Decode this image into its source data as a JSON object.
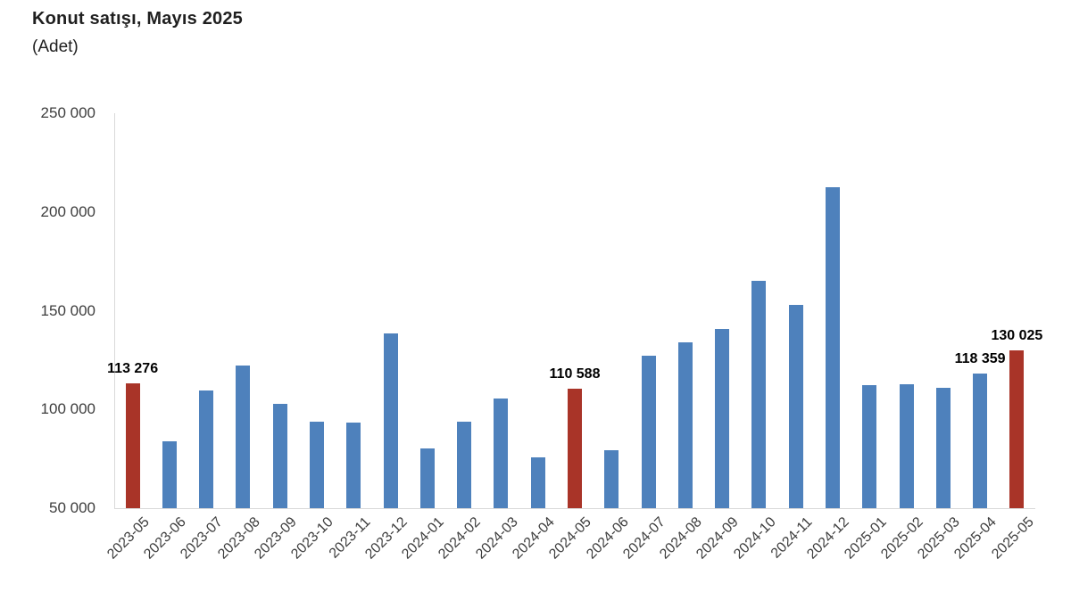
{
  "header": {
    "title": "Konut satışı, Mayıs 2025",
    "subtitle": "(Adet)"
  },
  "chart_data": {
    "type": "bar",
    "title": "Konut satışı, Mayıs 2025",
    "unit_label": "(Adet)",
    "categories": [
      "2023-05",
      "2023-06",
      "2023-07",
      "2023-08",
      "2023-09",
      "2023-10",
      "2023-11",
      "2023-12",
      "2024-01",
      "2024-02",
      "2024-03",
      "2024-04",
      "2024-05",
      "2024-06",
      "2024-07",
      "2024-08",
      "2024-09",
      "2024-10",
      "2024-11",
      "2024-12",
      "2025-01",
      "2025-02",
      "2025-03",
      "2025-04",
      "2025-05"
    ],
    "values": [
      113276,
      83636,
      109548,
      122091,
      102656,
      93761,
      93514,
      138577,
      80308,
      93902,
      105476,
      75569,
      110588,
      79313,
      127088,
      134155,
      140919,
      165138,
      153014,
      212637,
      112173,
      112818,
      110795,
      118359,
      130025
    ],
    "highlight_indices": [
      0,
      12,
      24
    ],
    "highlighted_categories": [
      "2023-05",
      "2024-05",
      "2025-05"
    ],
    "data_labels": {
      "0": "113 276",
      "12": "110 588",
      "23": "118 359",
      "24": "130 025"
    },
    "ylim": [
      50000,
      250000
    ],
    "ytick_values": [
      50000,
      100000,
      150000,
      200000,
      250000
    ],
    "ytick_labels": [
      "50 000",
      "100 000",
      "150 000",
      "200 000",
      "250 000"
    ],
    "xlabel": "",
    "ylabel": "",
    "grid": false,
    "legend": false,
    "colors": {
      "bar": "#4e81bc",
      "bar_highlight": "#a93428",
      "axis_line": "#d9d9d9",
      "tick_text": "#3d3d3d",
      "data_label_text": "#000000",
      "title_text": "#1f1f1f"
    }
  }
}
